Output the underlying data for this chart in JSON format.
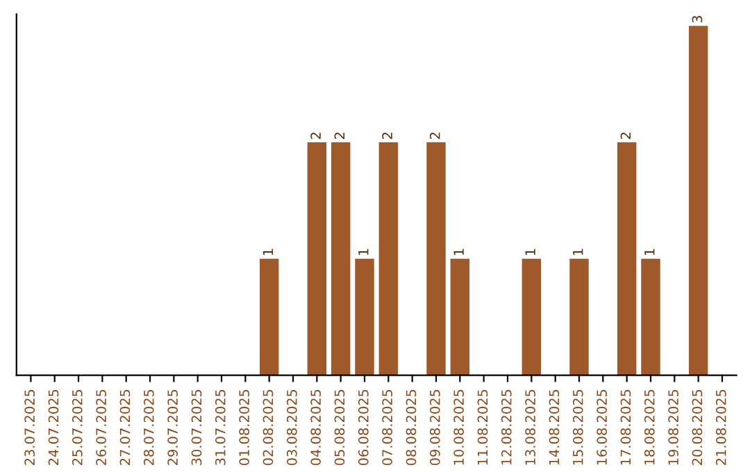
{
  "chart_data": {
    "type": "bar",
    "categories": [
      "23.07.2025",
      "24.07.2025",
      "25.07.2025",
      "26.07.2025",
      "27.07.2025",
      "28.07.2025",
      "29.07.2025",
      "30.07.2025",
      "31.07.2025",
      "01.08.2025",
      "02.08.2025",
      "03.08.2025",
      "04.08.2025",
      "05.08.2025",
      "06.08.2025",
      "07.08.2025",
      "08.08.2025",
      "09.08.2025",
      "10.08.2025",
      "11.08.2025",
      "12.08.2025",
      "13.08.2025",
      "14.08.2025",
      "15.08.2025",
      "16.08.2025",
      "17.08.2025",
      "18.08.2025",
      "19.08.2025",
      "20.08.2025",
      "21.08.2025"
    ],
    "values": [
      0,
      0,
      0,
      0,
      0,
      0,
      0,
      0,
      0,
      0,
      1,
      0,
      2,
      2,
      1,
      2,
      0,
      2,
      1,
      0,
      0,
      1,
      0,
      1,
      0,
      2,
      1,
      0,
      3,
      0
    ],
    "value_labels": [
      null,
      null,
      null,
      null,
      null,
      null,
      null,
      null,
      null,
      null,
      "1",
      null,
      "2",
      "2",
      "1",
      "2",
      null,
      "2",
      "1",
      null,
      null,
      "1",
      null,
      "1",
      null,
      "2",
      "1",
      null,
      "3",
      null
    ],
    "color": "#a0592a",
    "ylim": [
      0,
      3.1
    ],
    "tick_labels": "x",
    "grid": false,
    "legend": false
  }
}
